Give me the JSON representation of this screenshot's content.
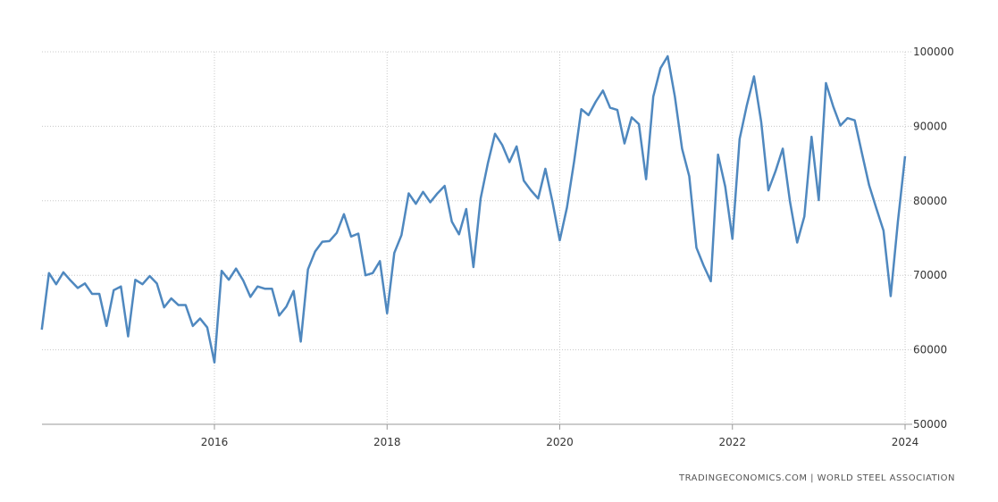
{
  "chart_data": {
    "type": "line",
    "title": "",
    "xlabel": "",
    "ylabel": "",
    "ylim": [
      50000,
      100000
    ],
    "yticks": [
      "50000",
      "60000",
      "70000",
      "80000",
      "90000",
      "100000"
    ],
    "xticks": [
      "2016",
      "2018",
      "2020",
      "2022",
      "2024"
    ],
    "grid": true,
    "legend": "none",
    "line_color": "#4f88bf",
    "series": [
      {
        "x": [
          "2014-01",
          "2014-02",
          "2014-03",
          "2014-04",
          "2014-05",
          "2014-06",
          "2014-07",
          "2014-08",
          "2014-09",
          "2014-10",
          "2014-11",
          "2014-12",
          "2015-01",
          "2015-02",
          "2015-03",
          "2015-04",
          "2015-05",
          "2015-06",
          "2015-07",
          "2015-08",
          "2015-09",
          "2015-10",
          "2015-11",
          "2015-12",
          "2016-01",
          "2016-02",
          "2016-03",
          "2016-04",
          "2016-05",
          "2016-06",
          "2016-07",
          "2016-08",
          "2016-09",
          "2016-10",
          "2016-11",
          "2016-12",
          "2017-01",
          "2017-02",
          "2017-03",
          "2017-04",
          "2017-05",
          "2017-06",
          "2017-07",
          "2017-08",
          "2017-09",
          "2017-10",
          "2017-11",
          "2017-12",
          "2018-01",
          "2018-02",
          "2018-03",
          "2018-04",
          "2018-05",
          "2018-06",
          "2018-07",
          "2018-08",
          "2018-09",
          "2018-10",
          "2018-11",
          "2018-12",
          "2019-01",
          "2019-02",
          "2019-03",
          "2019-04",
          "2019-05",
          "2019-06",
          "2019-07",
          "2019-08",
          "2019-09",
          "2019-10",
          "2019-11",
          "2019-12",
          "2020-01",
          "2020-02",
          "2020-03",
          "2020-04",
          "2020-05",
          "2020-06",
          "2020-07",
          "2020-08",
          "2020-09",
          "2020-10",
          "2020-11",
          "2020-12",
          "2021-01",
          "2021-02",
          "2021-03",
          "2021-04",
          "2021-05",
          "2021-06",
          "2021-07",
          "2021-08",
          "2021-09",
          "2021-10",
          "2021-11",
          "2021-12",
          "2022-01",
          "2022-02",
          "2022-03",
          "2022-04",
          "2022-05",
          "2022-06",
          "2022-07",
          "2022-08",
          "2022-09",
          "2022-10",
          "2022-11",
          "2022-12",
          "2023-01",
          "2023-02",
          "2023-03",
          "2023-04",
          "2023-05",
          "2023-06",
          "2023-07",
          "2023-08",
          "2023-09",
          "2023-10",
          "2023-11",
          "2023-12",
          "2024-01"
        ],
        "values": [
          62700,
          70300,
          68800,
          70400,
          69300,
          68300,
          68900,
          67500,
          67500,
          63200,
          68000,
          68500,
          61800,
          69400,
          68800,
          69900,
          68900,
          65700,
          66900,
          66000,
          66000,
          63200,
          64200,
          63000,
          58300,
          70600,
          69400,
          70900,
          69300,
          67100,
          68500,
          68200,
          68200,
          64600,
          65800,
          67900,
          61100,
          70800,
          73200,
          74500,
          74600,
          75700,
          78200,
          75200,
          75600,
          70000,
          70300,
          71900,
          64900,
          73000,
          75400,
          81000,
          79600,
          81200,
          79800,
          81000,
          82000,
          77200,
          75500,
          78900,
          71100,
          80300,
          85000,
          89000,
          87500,
          85200,
          87300,
          82700,
          81400,
          80300,
          84300,
          79800,
          74700,
          79100,
          85300,
          92300,
          91500,
          93300,
          94800,
          92500,
          92200,
          87700,
          91200,
          90300,
          82900,
          94000,
          97800,
          99400,
          94000,
          87000,
          83300,
          73700,
          71300,
          69200,
          86200,
          81900,
          74900,
          88300,
          92800,
          96700,
          90600,
          81400,
          84000,
          87000,
          79900,
          74400,
          77900,
          88600,
          80100,
          95800,
          92700,
          90100,
          91100,
          90800,
          86400,
          82100,
          79000,
          76000,
          67200,
          77200,
          86000
        ]
      }
    ],
    "source_text": "TRADINGECONOMICS.COM  |  WORLD STEEL ASSOCIATION"
  }
}
